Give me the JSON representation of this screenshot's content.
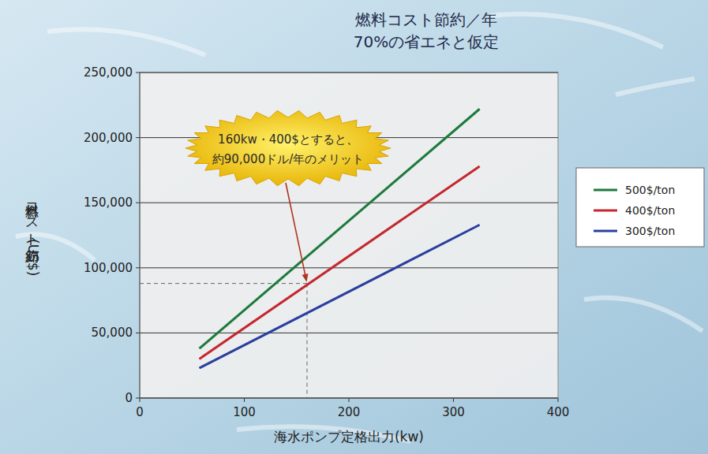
{
  "chart_data": {
    "type": "line",
    "title": "燃料コスト節約／年",
    "subtitle": "70%の省エネと仮定",
    "x_label": "海水ポンプ定格出力(kw)",
    "y_label": "燃料コスト節約(US$)",
    "x": [
      57,
      325
    ],
    "series": [
      {
        "name": "500$/ton",
        "color": "#1d7a3c",
        "values": [
          38000,
          222000
        ]
      },
      {
        "name": "400$/ton",
        "color": "#c4272f",
        "values": [
          30000,
          178000
        ]
      },
      {
        "name": "300$/ton",
        "color": "#2a3f9e",
        "values": [
          23000,
          133000
        ]
      }
    ],
    "xlim": [
      0,
      400
    ],
    "xticks": [
      0,
      100,
      200,
      300,
      400
    ],
    "ylim": [
      0,
      250000
    ],
    "yticks": [
      0,
      {
        "value": 50000,
        "label": "50,000"
      },
      {
        "value": 100000,
        "label": "100,000"
      },
      {
        "value": 150000,
        "label": "150,000"
      },
      {
        "value": 200000,
        "label": "200,000"
      },
      {
        "value": 250000,
        "label": "250,000"
      }
    ],
    "grid": true,
    "legend": "right",
    "annotation": [
      "160kw・400$とすると、",
      "約90,000ドル/年のメリット"
    ],
    "reference": {
      "x": 160,
      "y": 88000
    }
  }
}
